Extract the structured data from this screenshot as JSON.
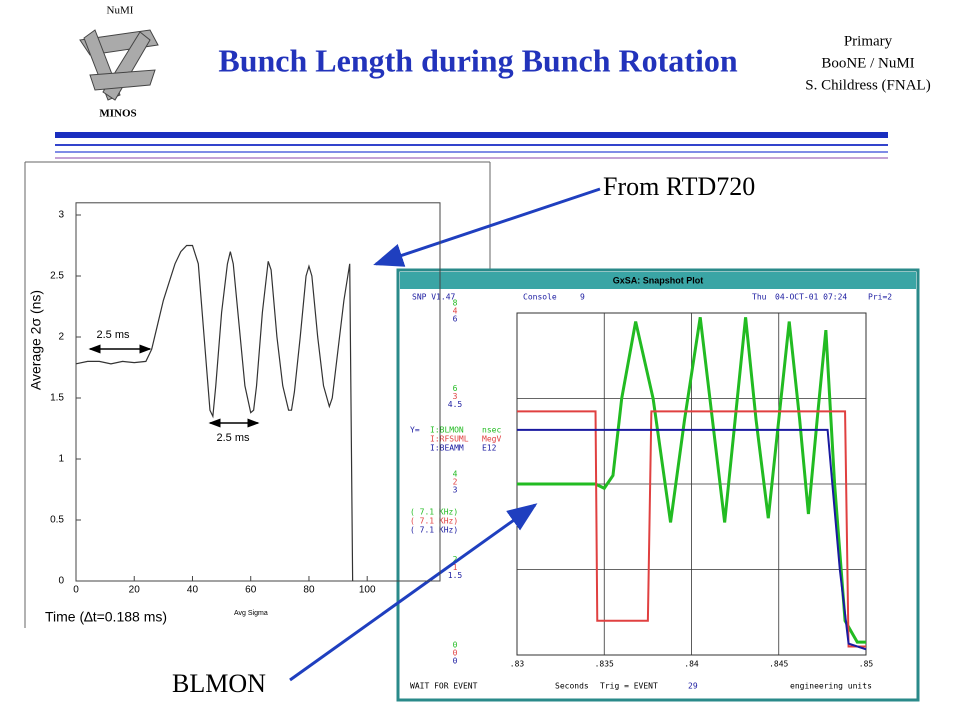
{
  "header": {
    "logo_top": "NuMI",
    "logo_bottom": "MINOS",
    "title": "Bunch Length during Bunch Rotation",
    "corner": [
      "Primary",
      "BooNE / NuMI",
      "S. Childress (FNAL)"
    ]
  },
  "annotations": {
    "rtd": "From RTD720",
    "blmon": "BLMON"
  },
  "chart_data": [
    {
      "type": "line",
      "ylabel": "Average 2σ (ns)",
      "xlabel": "Time (∆t=0.188 ms)",
      "legend": "Avg Sigma",
      "notes": [
        "2.5 ms",
        "2.5 ms"
      ],
      "xlim": [
        0,
        125
      ],
      "ylim": [
        0,
        3.1
      ],
      "xticks": [
        0,
        20,
        40,
        60,
        80,
        100
      ],
      "yticks": [
        0,
        0.5,
        1,
        1.5,
        2,
        2.5,
        3
      ],
      "color": "#333333",
      "x": [
        0,
        4,
        8,
        12,
        16,
        20,
        24,
        26,
        28,
        30,
        32,
        34,
        36,
        38,
        40,
        42,
        44,
        46,
        47,
        48,
        50,
        52,
        53,
        54,
        56,
        58,
        60,
        61,
        62,
        64,
        66,
        67,
        69,
        71,
        73,
        74,
        75,
        77,
        79,
        80,
        81,
        83,
        85,
        87,
        88,
        90,
        92,
        94,
        95
      ],
      "values": [
        1.78,
        1.8,
        1.8,
        1.78,
        1.8,
        1.79,
        1.8,
        1.9,
        2.1,
        2.3,
        2.45,
        2.6,
        2.7,
        2.75,
        2.75,
        2.6,
        2.0,
        1.4,
        1.35,
        1.6,
        2.2,
        2.6,
        2.7,
        2.6,
        2.1,
        1.6,
        1.38,
        1.4,
        1.6,
        2.2,
        2.62,
        2.55,
        2.0,
        1.6,
        1.4,
        1.4,
        1.55,
        2.0,
        2.5,
        2.58,
        2.5,
        2.0,
        1.6,
        1.43,
        1.5,
        1.9,
        2.3,
        2.6,
        0
      ]
    },
    {
      "type": "line",
      "window_title": "GxSA: Snapshot Plot",
      "status": [
        "SNP V1.47",
        "Console",
        "9",
        "Thu",
        "04-OCT-01 07:24",
        "Pri=2"
      ],
      "footer": [
        "WAIT FOR EVENT",
        "Trig = EVENT",
        "29",
        "engineering units"
      ],
      "xlabel": "Seconds",
      "y_prefix": "Y=",
      "grid": true,
      "xlim": [
        0.83,
        0.85
      ],
      "xticks": [
        {
          "value": 0.83,
          "label": ".83"
        },
        {
          "value": 0.835,
          "label": ".835"
        },
        {
          "value": 0.84,
          "label": ".84"
        },
        {
          "value": 0.845,
          "label": ".845"
        },
        {
          "value": 0.85,
          "label": ".85"
        }
      ],
      "series": [
        {
          "name": "I:BLMON",
          "unit": "nsec",
          "rate": "( 7.1 KHz)",
          "color": "#22bb22",
          "ylim": [
            0,
            8
          ],
          "yticks": [
            0,
            2,
            4,
            6,
            8
          ],
          "x": [
            0.83,
            0.8345,
            0.835,
            0.8355,
            0.836,
            0.8368,
            0.8378,
            0.8388,
            0.8396,
            0.8405,
            0.8412,
            0.8419,
            0.8425,
            0.8431,
            0.8437,
            0.8444,
            0.845,
            0.8456,
            0.8462,
            0.8467,
            0.8472,
            0.8477,
            0.8482,
            0.8488,
            0.8495,
            0.85
          ],
          "values": [
            4.0,
            4.0,
            3.9,
            4.2,
            6.0,
            7.8,
            6.0,
            3.1,
            5.5,
            7.9,
            5.5,
            3.1,
            5.5,
            7.9,
            5.5,
            3.2,
            5.5,
            7.8,
            5.5,
            3.3,
            5.5,
            7.6,
            4.0,
            0.8,
            0.3,
            0.3
          ]
        },
        {
          "name": "I:RFSUML",
          "unit": "MegV",
          "rate": "( 7.1 KHz)",
          "color": "#e04040",
          "ylim": [
            0,
            4
          ],
          "yticks": [
            0,
            1,
            2,
            3,
            4
          ],
          "x": [
            0.83,
            0.8345,
            0.8346,
            0.8375,
            0.8377,
            0.8488,
            0.849,
            0.85
          ],
          "values": [
            2.85,
            2.85,
            0.4,
            0.4,
            2.85,
            2.85,
            0.1,
            0.1
          ]
        },
        {
          "name": "I:BEAMM",
          "unit": "E12",
          "rate": "( 7.1 KHz)",
          "color": "#1a1aa0",
          "ylim": [
            0,
            6
          ],
          "yticks": [
            0,
            1.5,
            3,
            4.5,
            6
          ],
          "x": [
            0.83,
            0.8478,
            0.8485,
            0.849,
            0.85
          ],
          "values": [
            3.95,
            3.95,
            1.5,
            0.2,
            0.1
          ]
        }
      ]
    }
  ]
}
